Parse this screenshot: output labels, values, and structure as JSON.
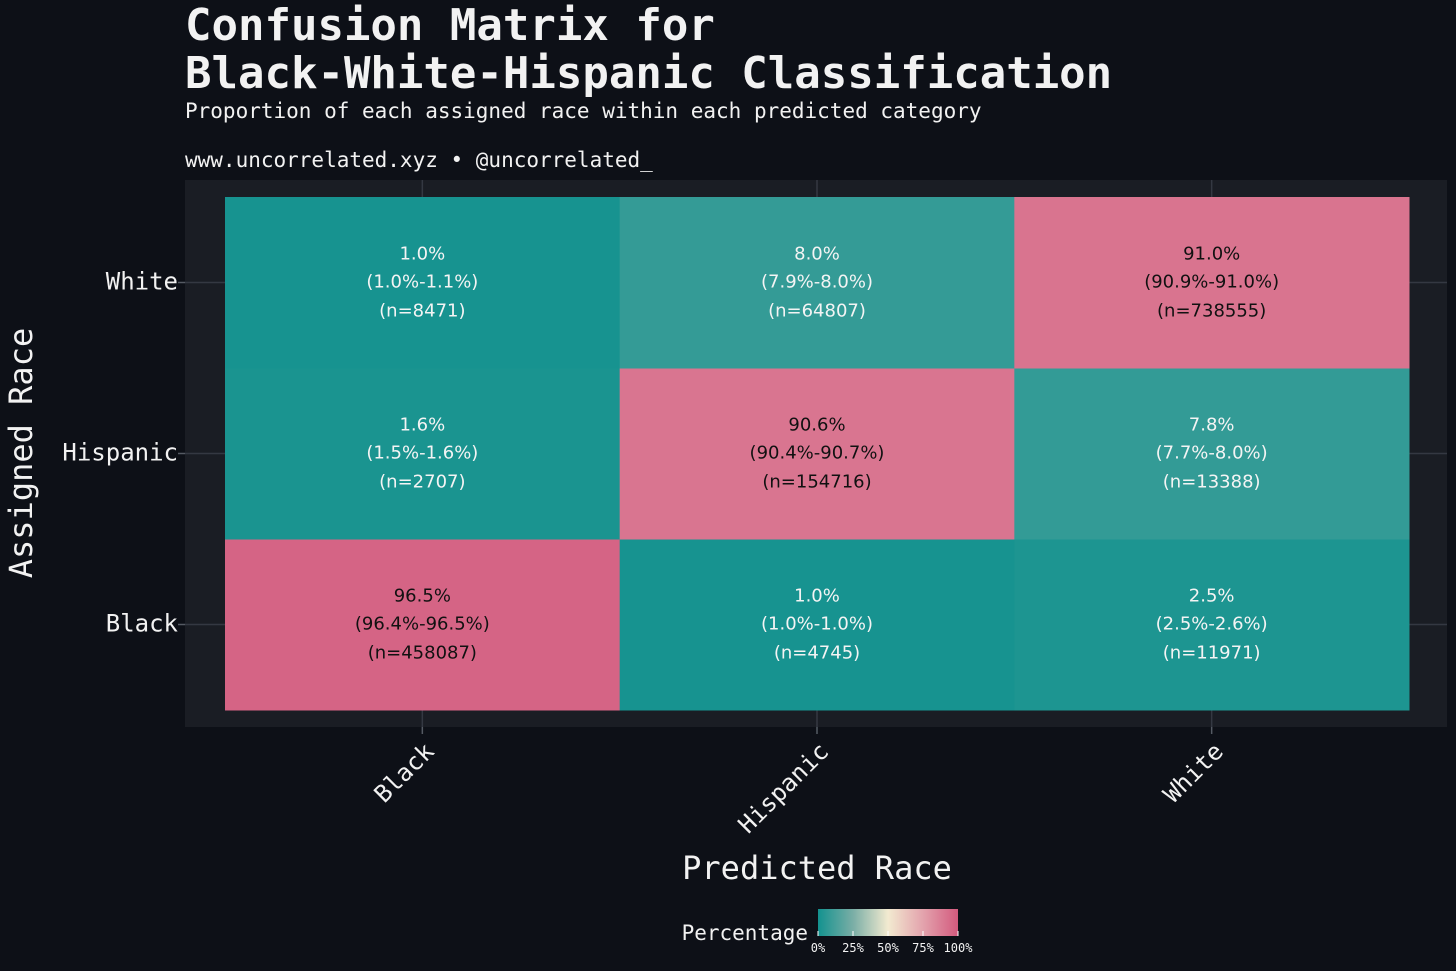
{
  "chart_data": {
    "type": "heatmap",
    "title": [
      "Confusion Matrix for",
      "Black-White-Hispanic Classification"
    ],
    "subtitle": "Proportion of each assigned race within each predicted category",
    "caption": "www.uncorrelated.xyz • @uncorrelated_",
    "x_label": "Predicted Race",
    "y_label": "Assigned Race",
    "x_categories": [
      "Black",
      "Hispanic",
      "White"
    ],
    "y_categories": [
      "Black",
      "Hispanic",
      "White"
    ],
    "values": [
      [
        96.5,
        1.0,
        2.5
      ],
      [
        1.6,
        90.6,
        7.8
      ],
      [
        1.0,
        8.0,
        91.0
      ]
    ],
    "value_labels": [
      [
        "96.5%",
        "1.0%",
        "2.5%"
      ],
      [
        "1.6%",
        "90.6%",
        "7.8%"
      ],
      [
        "1.0%",
        "8.0%",
        "91.0%"
      ]
    ],
    "ci_labels": [
      [
        "(96.4%-96.5%)",
        "(1.0%-1.0%)",
        "(2.5%-2.6%)"
      ],
      [
        "(1.5%-1.6%)",
        "(90.4%-90.7%)",
        "(7.7%-8.0%)"
      ],
      [
        "(1.0%-1.1%)",
        "(7.9%-8.0%)",
        "(90.9%-91.0%)"
      ]
    ],
    "counts": [
      [
        458087,
        4745,
        11971
      ],
      [
        2707,
        154716,
        13388
      ],
      [
        8471,
        64807,
        738555
      ]
    ],
    "count_labels": [
      [
        "(n=458087)",
        "(n=4745)",
        "(n=11971)"
      ],
      [
        "(n=2707)",
        "(n=154716)",
        "(n=13388)"
      ],
      [
        "(n=8471)",
        "(n=64807)",
        "(n=738555)"
      ]
    ],
    "grid": true,
    "legend_title": "Percentage",
    "colorlim": [
      0,
      100
    ],
    "colorscale": [
      {
        "value": 0,
        "color": "#13928f"
      },
      {
        "value": 25,
        "color": "#7aaea6"
      },
      {
        "value": 50,
        "color": "#f2ead0"
      },
      {
        "value": 75,
        "color": "#e3a3ad"
      },
      {
        "value": 100,
        "color": "#d35a7e"
      }
    ],
    "colorticks": [
      {
        "value": 0,
        "label": "0%"
      },
      {
        "value": 25,
        "label": "25%"
      },
      {
        "value": 50,
        "label": "50%"
      },
      {
        "value": 75,
        "label": "75%"
      },
      {
        "value": 100,
        "label": "100%"
      }
    ]
  }
}
